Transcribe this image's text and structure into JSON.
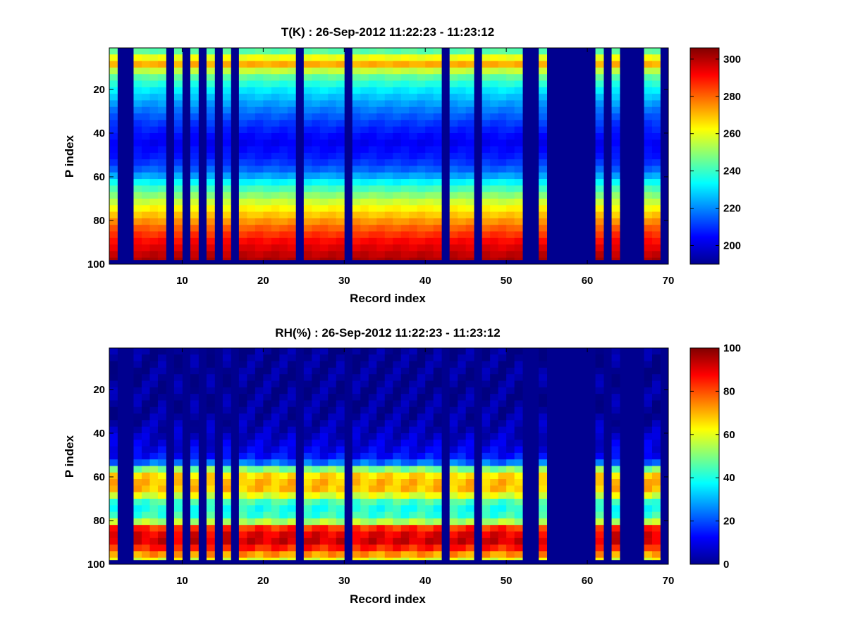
{
  "chart_data": [
    {
      "type": "heatmap",
      "title": "T(K) : 26-Sep-2012 11:22:23 - 11:23:12",
      "xlabel": "Record index",
      "ylabel": "P index",
      "xlim": [
        1,
        70
      ],
      "ylim": [
        100,
        1
      ],
      "xticks": [
        "10",
        "20",
        "30",
        "40",
        "50",
        "60",
        "70"
      ],
      "yticks": [
        "20",
        "40",
        "60",
        "80",
        "100"
      ],
      "colorbar": {
        "min": 190,
        "max": 306,
        "ticks": [
          "200",
          "220",
          "240",
          "260",
          "280",
          "300"
        ]
      },
      "valid_records": [
        1,
        4,
        5,
        6,
        7,
        9,
        11,
        13,
        15,
        17,
        18,
        19,
        20,
        21,
        22,
        23,
        25,
        26,
        27,
        28,
        29,
        31,
        32,
        33,
        34,
        35,
        36,
        37,
        38,
        39,
        40,
        41,
        43,
        44,
        45,
        47,
        48,
        49,
        50,
        51,
        54,
        61,
        63,
        67,
        68
      ],
      "profile": [
        {
          "p": 1,
          "value": 235
        },
        {
          "p": 5,
          "value": 258
        },
        {
          "p": 8,
          "value": 275
        },
        {
          "p": 10,
          "value": 262
        },
        {
          "p": 14,
          "value": 245
        },
        {
          "p": 20,
          "value": 232
        },
        {
          "p": 28,
          "value": 220
        },
        {
          "p": 36,
          "value": 210
        },
        {
          "p": 44,
          "value": 203
        },
        {
          "p": 52,
          "value": 208
        },
        {
          "p": 58,
          "value": 218
        },
        {
          "p": 63,
          "value": 235
        },
        {
          "p": 68,
          "value": 248
        },
        {
          "p": 72,
          "value": 258
        },
        {
          "p": 78,
          "value": 270
        },
        {
          "p": 84,
          "value": 282
        },
        {
          "p": 90,
          "value": 292
        },
        {
          "p": 96,
          "value": 299
        },
        {
          "p": 98,
          "value": 301
        }
      ],
      "fill_value": 190
    },
    {
      "type": "heatmap",
      "title": "RH(%) : 26-Sep-2012 11:22:23 - 11:23:12",
      "xlabel": "Record index",
      "ylabel": "P index",
      "xlim": [
        1,
        70
      ],
      "ylim": [
        100,
        1
      ],
      "xticks": [
        "10",
        "20",
        "30",
        "40",
        "50",
        "60",
        "70"
      ],
      "yticks": [
        "20",
        "40",
        "60",
        "80",
        "100"
      ],
      "colorbar": {
        "min": 0,
        "max": 100,
        "ticks": [
          "0",
          "20",
          "40",
          "60",
          "80",
          "100"
        ]
      },
      "valid_records": [
        1,
        4,
        5,
        6,
        7,
        9,
        11,
        13,
        15,
        17,
        18,
        19,
        20,
        21,
        22,
        23,
        25,
        26,
        27,
        28,
        29,
        31,
        32,
        33,
        34,
        35,
        36,
        37,
        38,
        39,
        40,
        41,
        43,
        44,
        45,
        47,
        48,
        49,
        50,
        51,
        54,
        61,
        63,
        67,
        68
      ],
      "profile": [
        {
          "p": 1,
          "value": 2
        },
        {
          "p": 30,
          "value": 3
        },
        {
          "p": 40,
          "value": 6
        },
        {
          "p": 50,
          "value": 12
        },
        {
          "p": 54,
          "value": 25
        },
        {
          "p": 57,
          "value": 55
        },
        {
          "p": 60,
          "value": 68
        },
        {
          "p": 65,
          "value": 70
        },
        {
          "p": 68,
          "value": 62
        },
        {
          "p": 71,
          "value": 45
        },
        {
          "p": 76,
          "value": 38
        },
        {
          "p": 80,
          "value": 50
        },
        {
          "p": 84,
          "value": 88
        },
        {
          "p": 90,
          "value": 92
        },
        {
          "p": 94,
          "value": 80
        },
        {
          "p": 98,
          "value": 60
        }
      ],
      "fill_value": 1
    }
  ]
}
